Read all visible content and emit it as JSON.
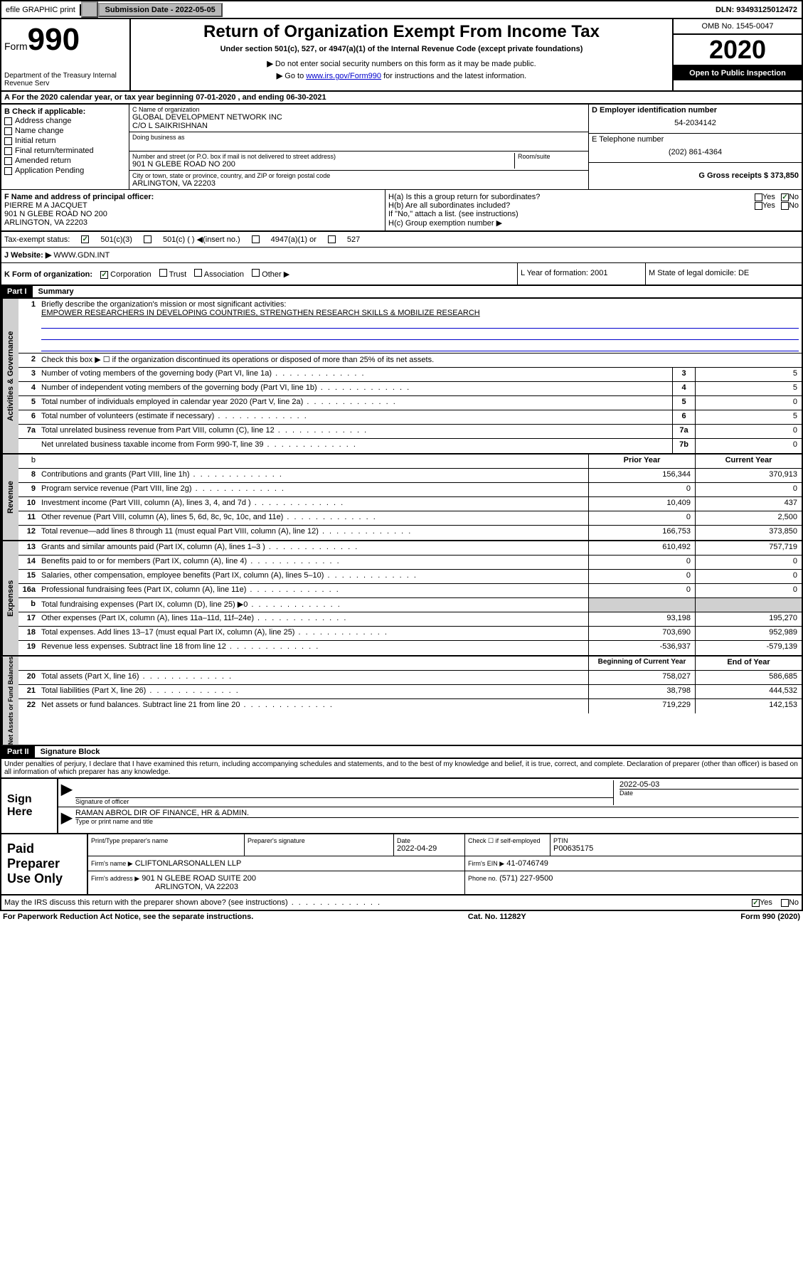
{
  "topbar": {
    "efile": "efile GRAPHIC print",
    "subdate_label": "Submission Date - 2022-05-05",
    "dln_label": "DLN: 93493125012472"
  },
  "header": {
    "form_label": "Form",
    "form_number": "990",
    "dept": "Department of the Treasury\nInternal Revenue Serv",
    "title": "Return of Organization Exempt From Income Tax",
    "subtitle": "Under section 501(c), 527, or 4947(a)(1) of the Internal Revenue Code (except private foundations)",
    "instruction1": "Do not enter social security numbers on this form as it may be made public.",
    "instruction2_pre": "Go to ",
    "instruction2_link": "www.irs.gov/Form990",
    "instruction2_post": " for instructions and the latest information.",
    "omb": "OMB No. 1545-0047",
    "year": "2020",
    "open_public": "Open to Public Inspection"
  },
  "section_a": "A For the 2020 calendar year, or tax year beginning 07-01-2020    , and ending 06-30-2021",
  "section_b": {
    "label": "B Check if applicable:",
    "options": [
      "Address change",
      "Name change",
      "Initial return",
      "Final return/terminated",
      "Amended return",
      "Application Pending"
    ]
  },
  "section_c": {
    "name_label": "C Name of organization",
    "name": "GLOBAL DEVELOPMENT NETWORK INC",
    "co": "C/O L SAIKRISHNAN",
    "dba_label": "Doing business as",
    "addr_label": "Number and street (or P.O. box if mail is not delivered to street address)",
    "room_label": "Room/suite",
    "addr": "901 N GLEBE ROAD NO 200",
    "city_label": "City or town, state or province, country, and ZIP or foreign postal code",
    "city": "ARLINGTON, VA  22203"
  },
  "section_d": {
    "label": "D Employer identification number",
    "value": "54-2034142"
  },
  "section_e": {
    "label": "E Telephone number",
    "value": "(202) 861-4364"
  },
  "section_g": {
    "label": "G Gross receipts $ 373,850"
  },
  "section_f": {
    "label": "F  Name and address of principal officer:",
    "name": "PIERRE M A JACQUET",
    "addr1": "901 N GLEBE ROAD NO 200",
    "addr2": "ARLINGTON, VA  22203"
  },
  "section_h": {
    "ha": "H(a)  Is this a group return for subordinates?",
    "hb": "H(b)  Are all subordinates included?",
    "hb_note": "If \"No,\" attach a list. (see instructions)",
    "hc": "H(c)  Group exemption number ▶",
    "yes": "Yes",
    "no": "No"
  },
  "tax_exempt": {
    "label": "Tax-exempt status:",
    "opt1": "501(c)(3)",
    "opt2": "501(c) (  ) ◀(insert no.)",
    "opt3": "4947(a)(1) or",
    "opt4": "527"
  },
  "website": {
    "label": "J    Website: ▶  ",
    "value": "WWW.GDN.INT"
  },
  "section_k": {
    "label": "K Form of organization:",
    "opts": [
      "Corporation",
      "Trust",
      "Association",
      "Other ▶"
    ]
  },
  "section_l": {
    "label": "L Year of formation: 2001"
  },
  "section_m": {
    "label": "M State of legal domicile: DE"
  },
  "part1": {
    "hdr": "Part I",
    "title": "Summary"
  },
  "summary": {
    "q1": "Briefly describe the organization's mission or most significant activities:",
    "mission": "EMPOWER RESEARCHERS IN DEVELOPING COUNTRIES, STRENGTHEN RESEARCH SKILLS & MOBILIZE RESEARCH",
    "q2": "Check this box ▶ ☐  if the organization discontinued its operations or disposed of more than 25% of its net assets.",
    "rows_gov": [
      {
        "n": "3",
        "d": "Number of voting members of the governing body (Part VI, line 1a)",
        "b": "3",
        "v": "5"
      },
      {
        "n": "4",
        "d": "Number of independent voting members of the governing body (Part VI, line 1b)",
        "b": "4",
        "v": "5"
      },
      {
        "n": "5",
        "d": "Total number of individuals employed in calendar year 2020 (Part V, line 2a)",
        "b": "5",
        "v": "0"
      },
      {
        "n": "6",
        "d": "Total number of volunteers (estimate if necessary)",
        "b": "6",
        "v": "5"
      },
      {
        "n": "7a",
        "d": "Total unrelated business revenue from Part VIII, column (C), line 12",
        "b": "7a",
        "v": "0"
      },
      {
        "n": "",
        "d": "Net unrelated business taxable income from Form 990-T, line 39",
        "b": "7b",
        "v": "0"
      }
    ],
    "col_hdrs": {
      "prior": "Prior Year",
      "current": "Current Year"
    },
    "rows_rev": [
      {
        "n": "8",
        "d": "Contributions and grants (Part VIII, line 1h)",
        "p": "156,344",
        "c": "370,913"
      },
      {
        "n": "9",
        "d": "Program service revenue (Part VIII, line 2g)",
        "p": "0",
        "c": "0"
      },
      {
        "n": "10",
        "d": "Investment income (Part VIII, column (A), lines 3, 4, and 7d )",
        "p": "10,409",
        "c": "437"
      },
      {
        "n": "11",
        "d": "Other revenue (Part VIII, column (A), lines 5, 6d, 8c, 9c, 10c, and 11e)",
        "p": "0",
        "c": "2,500"
      },
      {
        "n": "12",
        "d": "Total revenue—add lines 8 through 11 (must equal Part VIII, column (A), line 12)",
        "p": "166,753",
        "c": "373,850"
      }
    ],
    "rows_exp": [
      {
        "n": "13",
        "d": "Grants and similar amounts paid (Part IX, column (A), lines 1–3 )",
        "p": "610,492",
        "c": "757,719"
      },
      {
        "n": "14",
        "d": "Benefits paid to or for members (Part IX, column (A), line 4)",
        "p": "0",
        "c": "0"
      },
      {
        "n": "15",
        "d": "Salaries, other compensation, employee benefits (Part IX, column (A), lines 5–10)",
        "p": "0",
        "c": "0"
      },
      {
        "n": "16a",
        "d": "Professional fundraising fees (Part IX, column (A), line 11e)",
        "p": "0",
        "c": "0"
      },
      {
        "n": "b",
        "d": "Total fundraising expenses (Part IX, column (D), line 25) ▶0",
        "p": "",
        "c": "",
        "gray": true
      },
      {
        "n": "17",
        "d": "Other expenses (Part IX, column (A), lines 11a–11d, 11f–24e)",
        "p": "93,198",
        "c": "195,270"
      },
      {
        "n": "18",
        "d": "Total expenses. Add lines 13–17 (must equal Part IX, column (A), line 25)",
        "p": "703,690",
        "c": "952,989"
      },
      {
        "n": "19",
        "d": "Revenue less expenses. Subtract line 18 from line 12",
        "p": "-536,937",
        "c": "-579,139"
      }
    ],
    "col_hdrs2": {
      "begin": "Beginning of Current Year",
      "end": "End of Year"
    },
    "rows_net": [
      {
        "n": "20",
        "d": "Total assets (Part X, line 16)",
        "p": "758,027",
        "c": "586,685"
      },
      {
        "n": "21",
        "d": "Total liabilities (Part X, line 26)",
        "p": "38,798",
        "c": "444,532"
      },
      {
        "n": "22",
        "d": "Net assets or fund balances. Subtract line 21 from line 20",
        "p": "719,229",
        "c": "142,153"
      }
    ]
  },
  "side_labels": {
    "gov": "Activities & Governance",
    "rev": "Revenue",
    "exp": "Expenses",
    "net": "Net Assets or Fund Balances"
  },
  "part2": {
    "hdr": "Part II",
    "title": "Signature Block"
  },
  "penalty": "Under penalties of perjury, I declare that I have examined this return, including accompanying schedules and statements, and to the best of my knowledge and belief, it is true, correct, and complete. Declaration of preparer (other than officer) is based on all information of which preparer has any knowledge.",
  "sign": {
    "label": "Sign Here",
    "sig_label": "Signature of officer",
    "date_label": "Date",
    "date": "2022-05-03",
    "name": "RAMAN ABROL  DIR OF FINANCE, HR & ADMIN.",
    "name_label": "Type or print name and title"
  },
  "paid": {
    "label": "Paid Preparer Use Only",
    "col1": "Print/Type preparer's name",
    "col2": "Preparer's signature",
    "col3_label": "Date",
    "col3": "2022-04-29",
    "col4_label": "Check ☐ if self-employed",
    "col5_label": "PTIN",
    "col5": "P00635175",
    "firm_label": "Firm's name     ▶",
    "firm": "CLIFTONLARSONALLEN LLP",
    "ein_label": "Firm's EIN ▶",
    "ein": "41-0746749",
    "addr_label": "Firm's address ▶",
    "addr1": "901 N GLEBE ROAD SUITE 200",
    "addr2": "ARLINGTON, VA  22203",
    "phone_label": "Phone no.",
    "phone": "(571) 227-9500"
  },
  "discuss": {
    "q": "May the IRS discuss this return with the preparer shown above? (see instructions)",
    "yes": "Yes",
    "no": "No"
  },
  "footer": {
    "left": "For Paperwork Reduction Act Notice, see the separate instructions.",
    "mid": "Cat. No. 11282Y",
    "right": "Form 990 (2020)"
  }
}
